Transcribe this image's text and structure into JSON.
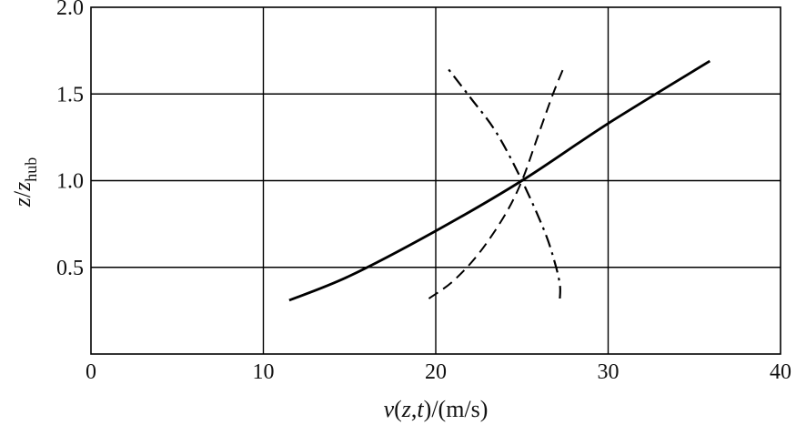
{
  "chart_data": {
    "type": "line",
    "title": "",
    "xlabel": "v(z,t)/(m/s)",
    "ylabel": "z/z_hub",
    "xlim": [
      0,
      40
    ],
    "ylim": [
      0,
      2.0
    ],
    "x_ticks": [
      0,
      10,
      20,
      30,
      40
    ],
    "y_ticks": [
      0.5,
      1.0,
      1.5,
      2.0
    ],
    "x_tick_labels": [
      "0",
      "10",
      "20",
      "30",
      "40"
    ],
    "y_tick_labels": [
      "0.5",
      "1.0",
      "1.5",
      "2.0"
    ],
    "grid": true,
    "legend": "none",
    "series": [
      {
        "style": "solid",
        "color": "#000000",
        "points": [
          [
            11.5,
            0.31
          ],
          [
            15,
            0.45
          ],
          [
            20,
            0.71
          ],
          [
            25,
            1.0
          ],
          [
            30,
            1.33
          ],
          [
            35.9,
            1.69
          ]
        ]
      },
      {
        "style": "dashed",
        "color": "#000000",
        "points": [
          [
            19.6,
            0.32
          ],
          [
            21,
            0.42
          ],
          [
            22.5,
            0.58
          ],
          [
            24,
            0.8
          ],
          [
            25,
            1.0
          ],
          [
            25.9,
            1.25
          ],
          [
            26.8,
            1.5
          ],
          [
            27.5,
            1.67
          ]
        ]
      },
      {
        "style": "dashdot",
        "color": "#000000",
        "points": [
          [
            27.2,
            0.32
          ],
          [
            27.2,
            0.4
          ],
          [
            26.9,
            0.53
          ],
          [
            26.3,
            0.71
          ],
          [
            25.0,
            1.0
          ],
          [
            23.5,
            1.28
          ],
          [
            22.0,
            1.48
          ],
          [
            20.6,
            1.66
          ]
        ]
      }
    ]
  }
}
